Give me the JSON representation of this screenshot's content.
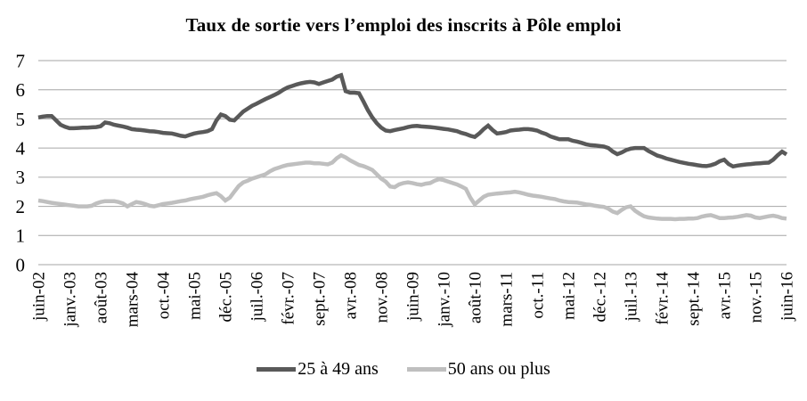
{
  "chart": {
    "title": "Taux de sortie vers l’emploi des inscrits à Pôle emploi"
  },
  "colors": {
    "grid": "#a6a6a6",
    "text": "#000000",
    "background": "#ffffff",
    "series_dark": "#595959",
    "series_light": "#bfbfbf"
  },
  "chart_data": {
    "type": "line",
    "title": "Taux de sortie vers l’emploi des inscrits à Pôle emploi",
    "xlabel": "",
    "ylabel": "",
    "ylim": [
      0,
      7
    ],
    "yticks": [
      0,
      1,
      2,
      3,
      4,
      5,
      6,
      7
    ],
    "grid": true,
    "legend_position": "bottom",
    "x_unit": "month",
    "tick_every": 7,
    "x_tick_labels": [
      "juin-02",
      "janv.-03",
      "août-03",
      "mars-04",
      "oct.-04",
      "mai-05",
      "déc.-05",
      "juil.-06",
      "févr.-07",
      "sept.-07",
      "avr.-08",
      "nov.-08",
      "juin-09",
      "janv.-10",
      "août-10",
      "mars-11",
      "oct.-11",
      "mai-12",
      "déc.-12",
      "juil.-13",
      "févr.-14",
      "sept.-14",
      "avr.-15",
      "nov.-15",
      "juin-16"
    ],
    "series": [
      {
        "name": "25 à 49 ans",
        "color": "#595959",
        "values": [
          5.05,
          5.08,
          5.1,
          5.1,
          4.95,
          4.8,
          4.73,
          4.68,
          4.68,
          4.69,
          4.7,
          4.7,
          4.71,
          4.72,
          4.75,
          4.88,
          4.85,
          4.8,
          4.77,
          4.74,
          4.7,
          4.65,
          4.63,
          4.62,
          4.6,
          4.58,
          4.57,
          4.55,
          4.52,
          4.51,
          4.5,
          4.46,
          4.42,
          4.4,
          4.45,
          4.5,
          4.53,
          4.55,
          4.58,
          4.65,
          4.95,
          5.15,
          5.1,
          4.97,
          4.95,
          5.1,
          5.25,
          5.35,
          5.45,
          5.52,
          5.6,
          5.68,
          5.75,
          5.82,
          5.9,
          6.0,
          6.08,
          6.13,
          6.18,
          6.22,
          6.25,
          6.27,
          6.25,
          6.2,
          6.25,
          6.3,
          6.35,
          6.45,
          6.5,
          5.95,
          5.9,
          5.9,
          5.88,
          5.6,
          5.3,
          5.05,
          4.85,
          4.7,
          4.6,
          4.58,
          4.62,
          4.65,
          4.68,
          4.72,
          4.75,
          4.76,
          4.74,
          4.73,
          4.72,
          4.7,
          4.68,
          4.66,
          4.64,
          4.61,
          4.58,
          4.52,
          4.48,
          4.42,
          4.38,
          4.5,
          4.65,
          4.77,
          4.62,
          4.5,
          4.52,
          4.55,
          4.6,
          4.62,
          4.63,
          4.65,
          4.65,
          4.63,
          4.6,
          4.53,
          4.48,
          4.4,
          4.35,
          4.3,
          4.3,
          4.3,
          4.25,
          4.22,
          4.18,
          4.13,
          4.1,
          4.09,
          4.07,
          4.05,
          4.0,
          3.88,
          3.79,
          3.85,
          3.93,
          3.98,
          4.0,
          4.0,
          4.0,
          3.9,
          3.82,
          3.74,
          3.7,
          3.64,
          3.6,
          3.56,
          3.52,
          3.49,
          3.46,
          3.44,
          3.41,
          3.39,
          3.38,
          3.41,
          3.46,
          3.55,
          3.6,
          3.45,
          3.37,
          3.4,
          3.42,
          3.44,
          3.45,
          3.47,
          3.48,
          3.49,
          3.5,
          3.6,
          3.75,
          3.88,
          3.78
        ]
      },
      {
        "name": "50 ans ou plus",
        "color": "#bfbfbf",
        "values": [
          2.2,
          2.18,
          2.15,
          2.12,
          2.1,
          2.08,
          2.06,
          2.04,
          2.02,
          2.0,
          2.0,
          2.0,
          2.02,
          2.1,
          2.15,
          2.18,
          2.18,
          2.18,
          2.15,
          2.1,
          2.0,
          2.08,
          2.15,
          2.12,
          2.08,
          2.02,
          2.0,
          2.04,
          2.08,
          2.1,
          2.12,
          2.15,
          2.18,
          2.2,
          2.24,
          2.27,
          2.3,
          2.33,
          2.38,
          2.42,
          2.45,
          2.35,
          2.2,
          2.3,
          2.5,
          2.7,
          2.82,
          2.88,
          2.95,
          3.0,
          3.05,
          3.1,
          3.2,
          3.28,
          3.33,
          3.38,
          3.42,
          3.44,
          3.46,
          3.48,
          3.5,
          3.5,
          3.48,
          3.48,
          3.46,
          3.44,
          3.5,
          3.65,
          3.75,
          3.68,
          3.58,
          3.5,
          3.42,
          3.38,
          3.32,
          3.25,
          3.1,
          2.95,
          2.85,
          2.68,
          2.66,
          2.75,
          2.8,
          2.82,
          2.8,
          2.76,
          2.74,
          2.78,
          2.8,
          2.88,
          2.93,
          2.9,
          2.85,
          2.8,
          2.75,
          2.68,
          2.6,
          2.3,
          2.07,
          2.2,
          2.33,
          2.4,
          2.42,
          2.44,
          2.45,
          2.47,
          2.48,
          2.5,
          2.48,
          2.44,
          2.4,
          2.37,
          2.35,
          2.33,
          2.3,
          2.27,
          2.25,
          2.2,
          2.17,
          2.15,
          2.14,
          2.13,
          2.1,
          2.07,
          2.05,
          2.02,
          2.0,
          1.98,
          1.92,
          1.82,
          1.77,
          1.88,
          1.97,
          2.0,
          1.85,
          1.75,
          1.66,
          1.62,
          1.6,
          1.58,
          1.57,
          1.57,
          1.57,
          1.56,
          1.57,
          1.57,
          1.58,
          1.58,
          1.6,
          1.65,
          1.68,
          1.7,
          1.65,
          1.6,
          1.6,
          1.61,
          1.62,
          1.64,
          1.67,
          1.7,
          1.68,
          1.62,
          1.6,
          1.63,
          1.66,
          1.68,
          1.65,
          1.6,
          1.58
        ]
      }
    ]
  }
}
